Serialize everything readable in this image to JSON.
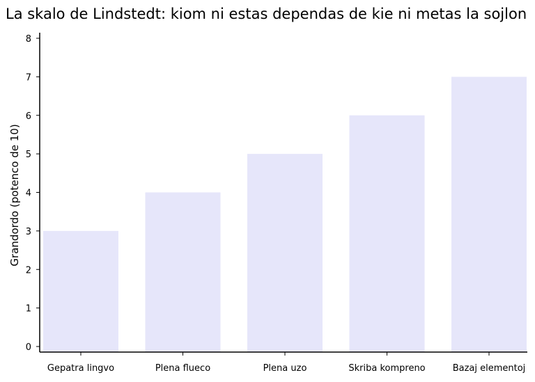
{
  "chart_data": {
    "type": "bar",
    "title": "La skalo de Lindstedt: kiom ni estas dependas de kie ni metas la sojlon",
    "xlabel": "",
    "ylabel": "Grandordo (potenco de 10)",
    "categories": [
      "Gepatra lingvo",
      "Plena flueco",
      "Plena uzo",
      "Skriba kompreno",
      "Bazaj elementoj"
    ],
    "values": [
      3,
      4,
      5,
      6,
      7
    ],
    "ylim": [
      0,
      8
    ],
    "yticks": [
      0,
      1,
      2,
      3,
      4,
      5,
      6,
      7,
      8
    ],
    "grid": false,
    "bar_color": "#e6e6fa"
  }
}
